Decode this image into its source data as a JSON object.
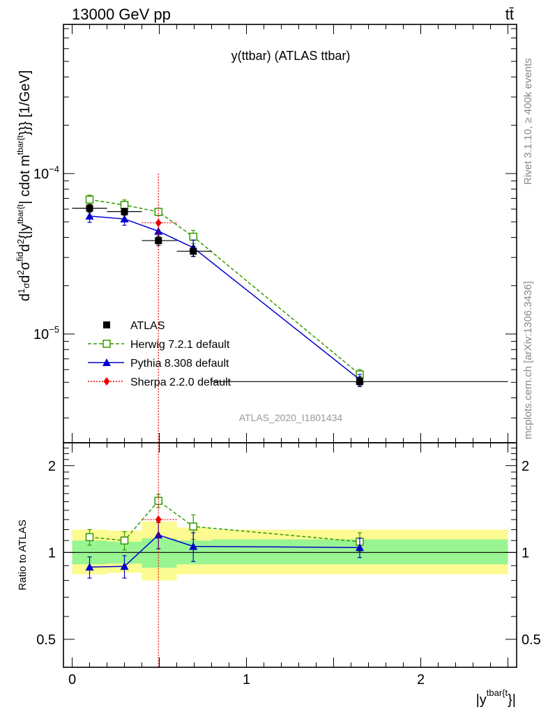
{
  "header": {
    "energy_label": "13000 GeV pp",
    "process_label": "tt̄",
    "side_label_top": "Rivet 3.1.10, ≥ 400k events",
    "side_label_bottom": "mcplots.cern.ch [arXiv:1306.3436]"
  },
  "chart_data": [
    {
      "type": "scatter",
      "title": "y(ttbar) (ATLAS ttbar)",
      "watermark": "ATLAS_2020_I1801434",
      "ylabel": "d1dσd²σfid/d²{|ytbar{t}| cdot mtbar{t}}}} [1/GeV]",
      "ylabel_parts": {
        "frac_top": "1",
        "frac_bottom": "σ",
        "d_prefix": "d",
        "d2": "d",
        "sigma": "σ",
        "fid": "fid",
        "sq": "2",
        "den_d": "d",
        "den_sq": "2",
        "den_tail": "{|y",
        "den_sup": "tbar{t",
        "mid": "| cdot m",
        "mid_sup": "tbar{t",
        "tail": "}}} [1/GeV]"
      },
      "yscale": "log",
      "xlim": [
        -0.05,
        2.55
      ],
      "ylim": [
        2.1e-06,
        0.00085
      ],
      "yticks_major": [
        {
          "value": 1e-05,
          "mantissa": "10",
          "exponent": "−5"
        },
        {
          "value": 0.0001,
          "mantissa": "10",
          "exponent": "−4"
        }
      ],
      "legend_position": "left",
      "series": [
        {
          "name": "ATLAS",
          "color": "#000000",
          "marker": "square-filled",
          "line": "none",
          "points": [
            {
              "x": 0.1,
              "xerr": [
                0.0,
                0.2
              ],
              "y": 6.08e-05,
              "yerr": [
                3.3e-06,
                3.3e-06
              ]
            },
            {
              "x": 0.3,
              "xerr": [
                0.2,
                0.4
              ],
              "y": 5.79e-05,
              "yerr": [
                2.9e-06,
                2.9e-06
              ]
            },
            {
              "x": 0.495,
              "xerr": [
                0.4,
                0.6
              ],
              "y": 3.82e-05,
              "yerr": [
                2.5e-06,
                2.5e-06
              ]
            },
            {
              "x": 0.695,
              "xerr": [
                0.6,
                0.8
              ],
              "y": 3.28e-05,
              "yerr": [
                2.4e-06,
                2.4e-06
              ]
            },
            {
              "x": 1.65,
              "xerr": [
                0.8,
                2.5
              ],
              "y": 5.05e-06,
              "yerr": [
                3.5e-07,
                3.5e-07
              ]
            }
          ]
        },
        {
          "name": "Herwig 7.2.1 default",
          "color": "#339900",
          "marker": "square-open",
          "line": "dashed",
          "points": [
            {
              "x": 0.1,
              "y": 6.88e-05,
              "yerr": [
                4.5e-06,
                4.5e-06
              ]
            },
            {
              "x": 0.3,
              "y": 6.37e-05,
              "yerr": [
                4.8e-06,
                4.8e-06
              ]
            },
            {
              "x": 0.495,
              "y": 5.77e-05,
              "yerr": [
                3e-06,
                3e-06
              ]
            },
            {
              "x": 0.695,
              "y": 4.04e-05,
              "yerr": [
                3.8e-06,
                3.8e-06
              ]
            },
            {
              "x": 1.65,
              "y": 5.6e-06,
              "yerr": [
                4e-07,
                4e-07
              ]
            }
          ]
        },
        {
          "name": "Pythia 8.308 default",
          "color": "#0000cc",
          "marker": "triangle-filled",
          "line": "solid",
          "points": [
            {
              "x": 0.1,
              "y": 5.43e-05,
              "yerr": [
                4.7e-06,
                4.7e-06
              ]
            },
            {
              "x": 0.3,
              "y": 5.21e-05,
              "yerr": [
                4.5e-06,
                4.5e-06
              ]
            },
            {
              "x": 0.495,
              "y": 4.37e-05,
              "yerr": [
                4.7e-06,
                4.7e-06
              ]
            },
            {
              "x": 0.695,
              "y": 3.45e-05,
              "yerr": [
                4e-06,
                4e-06
              ]
            },
            {
              "x": 1.65,
              "y": 5.2e-06,
              "yerr": [
                4e-07,
                4e-07
              ]
            }
          ]
        },
        {
          "name": "Sherpa 2.2.0 default",
          "color": "#ee0000",
          "marker": "diamond-filled",
          "line": "dotted",
          "points": [
            {
              "x": 0.495,
              "xerr": [
                0.4,
                0.6
              ],
              "y": 4.93e-05,
              "yerr_to": [
                2.1e-06,
                0.0001
              ]
            }
          ]
        }
      ]
    },
    {
      "type": "scatter",
      "ylabel": "Ratio to ATLAS",
      "xlabel": "|y",
      "xlabel_sup": "tbar{t",
      "xlabel_tail": "}|",
      "yscale": "log",
      "xlim": [
        -0.05,
        2.55
      ],
      "ylim": [
        0.4,
        2.4
      ],
      "reference_line": 1,
      "xticks": [
        {
          "value": 0,
          "label": "0"
        },
        {
          "value": 1,
          "label": "1"
        },
        {
          "value": 2,
          "label": "2"
        }
      ],
      "yticks_labeled": [
        {
          "value": 0.5,
          "label": "0.5"
        },
        {
          "value": 1,
          "label": "1"
        },
        {
          "value": 2,
          "label": "2"
        }
      ],
      "bands": [
        {
          "x": [
            0.0,
            0.2
          ],
          "inner": [
            0.91,
            1.1
          ],
          "outer": [
            0.84,
            1.2
          ]
        },
        {
          "x": [
            0.2,
            0.4
          ],
          "inner": [
            0.915,
            1.09
          ],
          "outer": [
            0.85,
            1.19
          ]
        },
        {
          "x": [
            0.4,
            0.6
          ],
          "inner": [
            0.885,
            1.12
          ],
          "outer": [
            0.8,
            1.28
          ]
        },
        {
          "x": [
            0.6,
            0.8
          ],
          "inner": [
            0.91,
            1.1
          ],
          "outer": [
            0.84,
            1.22
          ]
        },
        {
          "x": [
            0.8,
            2.5
          ],
          "inner": [
            0.91,
            1.11
          ],
          "outer": [
            0.84,
            1.2
          ]
        }
      ],
      "band_colors": {
        "inner": "#99f591",
        "outer": "#fbfb91"
      },
      "series": [
        {
          "name": "Herwig 7.2.1 default",
          "color": "#339900",
          "marker": "square-open",
          "line": "dashed",
          "points": [
            {
              "x": 0.1,
              "y": 1.13,
              "yerr": [
                0.07,
                0.07
              ]
            },
            {
              "x": 0.3,
              "y": 1.1,
              "yerr": [
                0.08,
                0.08
              ]
            },
            {
              "x": 0.495,
              "y": 1.51,
              "yerr": [
                0.08,
                0.08
              ]
            },
            {
              "x": 0.695,
              "y": 1.23,
              "yerr": [
                0.12,
                0.12
              ]
            },
            {
              "x": 1.65,
              "y": 1.09,
              "yerr": [
                0.08,
                0.08
              ]
            }
          ]
        },
        {
          "name": "Pythia 8.308 default",
          "color": "#0000cc",
          "marker": "triangle-filled",
          "line": "solid",
          "points": [
            {
              "x": 0.1,
              "y": 0.89,
              "yerr": [
                0.075,
                0.075
              ]
            },
            {
              "x": 0.3,
              "y": 0.895,
              "yerr": [
                0.08,
                0.08
              ]
            },
            {
              "x": 0.495,
              "y": 1.15,
              "yerr": [
                0.12,
                0.12
              ]
            },
            {
              "x": 0.695,
              "y": 1.05,
              "yerr": [
                0.12,
                0.12
              ]
            },
            {
              "x": 1.65,
              "y": 1.04,
              "yerr": [
                0.08,
                0.08
              ]
            }
          ]
        },
        {
          "name": "Sherpa 2.2.0 default",
          "color": "#ee0000",
          "marker": "diamond-filled",
          "line": "dotted",
          "points": [
            {
              "x": 0.495,
              "xerr": [
                0.4,
                0.6
              ],
              "y": 1.3,
              "yerr_to": [
                0.3,
                3.0
              ]
            }
          ]
        }
      ]
    }
  ]
}
